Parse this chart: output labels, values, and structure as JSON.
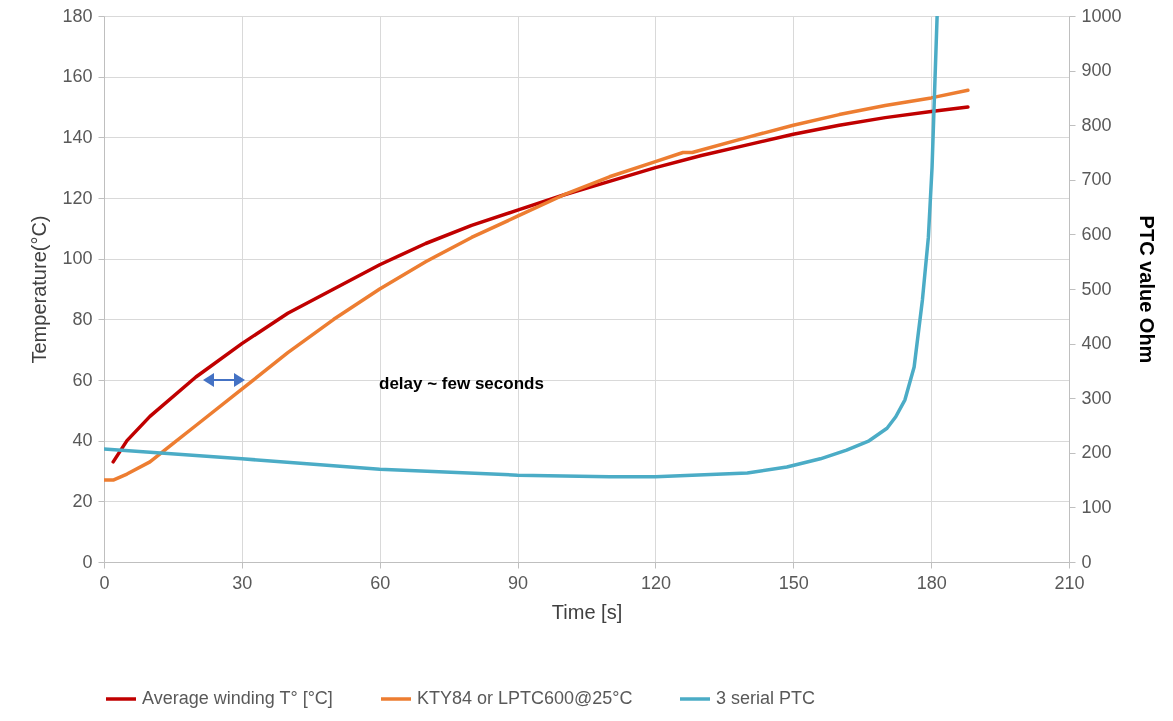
{
  "chart_data": {
    "type": "line",
    "xlabel": "Time [s]",
    "ylabel": "Temperature(°C)",
    "y2label": "PTC value Ohm",
    "xlim": [
      0,
      210
    ],
    "xticks": [
      0,
      30,
      60,
      90,
      120,
      150,
      180,
      210
    ],
    "ylim": [
      0,
      180
    ],
    "yticks": [
      0,
      20,
      40,
      60,
      80,
      100,
      120,
      140,
      160,
      180
    ],
    "y2lim": [
      0,
      1000
    ],
    "y2ticks": [
      0,
      100,
      200,
      300,
      400,
      500,
      600,
      700,
      800,
      900,
      1000
    ],
    "grid": true,
    "legend": "bottom",
    "line_style": "solid",
    "marker": "none",
    "annotations": [
      "delay ~  few seconds"
    ],
    "series": [
      {
        "name": "Average winding T° [°C]",
        "color": "#c00000",
        "x": [
          2,
          5,
          10,
          20,
          30,
          40,
          50,
          60,
          70,
          80,
          90,
          100,
          110,
          120,
          130,
          140,
          150,
          160,
          170,
          180,
          188
        ],
        "values": [
          33,
          40,
          48,
          61,
          72,
          82,
          90,
          98,
          105,
          111,
          116,
          121,
          125.5,
          130,
          134,
          137.5,
          141,
          144,
          146.5,
          148.5,
          150
        ]
      },
      {
        "name": "KTY84 or LPTC600@25°C",
        "color": "#ed7d31",
        "x": [
          0,
          2,
          5,
          10,
          15,
          20,
          30,
          40,
          50,
          60,
          70,
          80,
          90,
          100,
          110,
          120,
          126,
          128,
          140,
          150,
          160,
          170,
          180,
          188
        ],
        "values": [
          27,
          27,
          29,
          33,
          39,
          45,
          57,
          69,
          80,
          90,
          99,
          107,
          114,
          121,
          127,
          132,
          135,
          135,
          140,
          144,
          147.5,
          150.5,
          153,
          155.5
        ]
      },
      {
        "name": "3 serial PTC",
        "color": "#4bacc6",
        "axis": "y2",
        "x": [
          0,
          30,
          60,
          90,
          110,
          120,
          140,
          148.6,
          155.9,
          161.6,
          166.5,
          170.4,
          172.3,
          174.3,
          176.3,
          178.1,
          179.4,
          180.2,
          181.3
        ],
        "values": [
          207,
          189,
          170,
          159,
          156,
          156,
          163,
          174,
          189,
          205,
          222,
          245,
          266,
          297,
          357,
          480,
          595,
          723,
          1000
        ]
      }
    ]
  }
}
